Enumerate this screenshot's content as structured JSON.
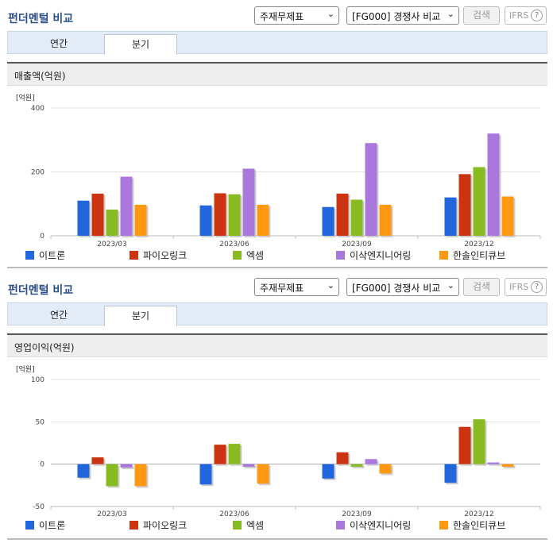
{
  "colors": [
    "#2266dd",
    "#cc3311",
    "#88bb22",
    "#aa77dd",
    "#ff9911"
  ],
  "sections": [
    {
      "title": "펀더멘털 비교",
      "select1": "주재무제표",
      "select2": "[FG000] 경쟁사 비교",
      "search_label": "검색",
      "ifrs_label": "IFRS",
      "help_label": "?",
      "tabs": [
        "연간",
        "분기"
      ],
      "active_tab": 1,
      "chart_title": "매출액(억원)"
    },
    {
      "title": "펀더멘털 비교",
      "select1": "주재무제표",
      "select2": "[FG000] 경쟁사 비교",
      "search_label": "검색",
      "ifrs_label": "IFRS",
      "help_label": "?",
      "tabs": [
        "연간",
        "분기"
      ],
      "active_tab": 1,
      "chart_title": "영업이익(억원)"
    }
  ],
  "chart_data": [
    {
      "type": "bar",
      "title": "매출액(억원)",
      "unit_label": "[억원]",
      "ylim": [
        0,
        400
      ],
      "yticks": [
        0,
        200,
        400
      ],
      "grid": true,
      "categories": [
        "2023/03",
        "2023/06",
        "2023/09",
        "2023/12"
      ],
      "series": [
        {
          "name": "이트론",
          "values": [
            110,
            95,
            90,
            120
          ]
        },
        {
          "name": "파이오링크",
          "values": [
            132,
            133,
            132,
            193
          ]
        },
        {
          "name": "엑셈",
          "values": [
            82,
            130,
            113,
            215
          ]
        },
        {
          "name": "이삭엔지니어링",
          "values": [
            185,
            210,
            290,
            320
          ]
        },
        {
          "name": "한솔인티큐브",
          "values": [
            97,
            97,
            97,
            123
          ]
        }
      ]
    },
    {
      "type": "bar",
      "title": "영업이익(억원)",
      "unit_label": "[억원]",
      "ylim": [
        -50,
        100
      ],
      "yticks": [
        -50,
        0,
        50,
        100
      ],
      "grid": true,
      "categories": [
        "2023/03",
        "2023/06",
        "2023/09",
        "2023/12"
      ],
      "series": [
        {
          "name": "이트론",
          "values": [
            -16,
            -24,
            -17,
            -22
          ]
        },
        {
          "name": "파이오링크",
          "values": [
            8,
            23,
            14,
            44
          ]
        },
        {
          "name": "엑셈",
          "values": [
            -26,
            24,
            -3,
            53
          ]
        },
        {
          "name": "이삭엔지니어링",
          "values": [
            -4,
            -3,
            6,
            2
          ]
        },
        {
          "name": "한솔인티큐브",
          "values": [
            -26,
            -23,
            -11,
            -3
          ]
        }
      ]
    }
  ]
}
